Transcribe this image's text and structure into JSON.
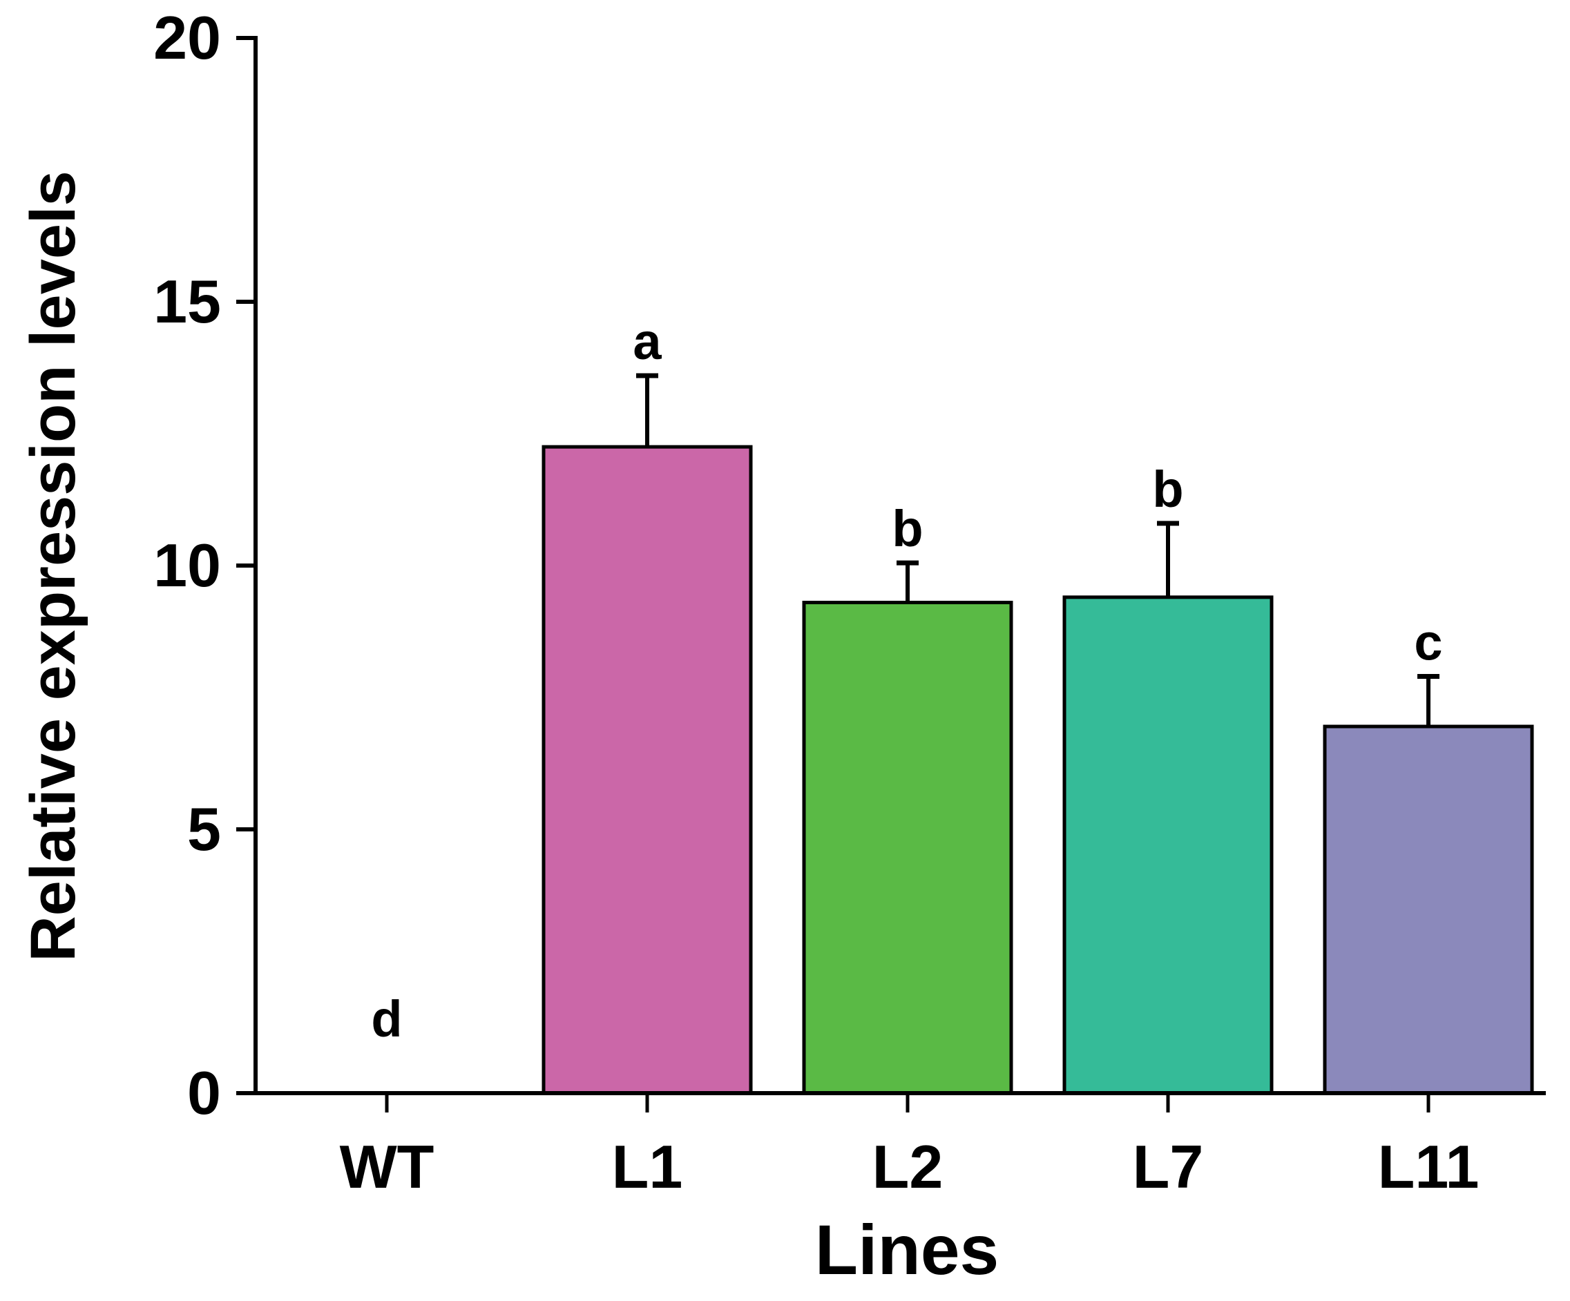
{
  "chart_data": {
    "type": "bar",
    "title": "",
    "xlabel": "Lines",
    "ylabel": "Relative expression levels",
    "ylim": [
      0,
      20
    ],
    "yticks": [
      "0",
      "5",
      "10",
      "15",
      "20"
    ],
    "grid": false,
    "legend": "none",
    "categories": [
      "WT",
      "L1",
      "L2",
      "L7",
      "L11"
    ],
    "values": [
      0,
      12.25,
      9.3,
      9.4,
      6.95
    ],
    "errors": [
      0,
      1.35,
      0.75,
      1.4,
      0.95
    ],
    "significance": [
      "d",
      "a",
      "b",
      "b",
      "c"
    ],
    "colors": [
      "#ffffff",
      "#cb67a8",
      "#5aba45",
      "#35bb98",
      "#8b89bb"
    ]
  }
}
